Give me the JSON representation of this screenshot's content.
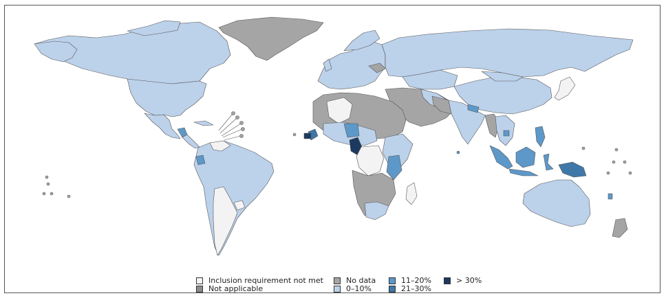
{
  "colors": {
    "not_met": "#f3f3f3",
    "not_applicable": "#8c8c8c",
    "no_data": "#a5a5a5",
    "range_0_10": "#bcd1ea",
    "range_11_20": "#5d98c9",
    "range_21_30": "#3f78a8",
    "range_gt30": "#1c3a60",
    "border": "#555555"
  },
  "legend": {
    "items": [
      {
        "key": "not_met",
        "label": "Inclusion requirement not met"
      },
      {
        "key": "not_applicable",
        "label": "Not applicable"
      },
      {
        "key": "no_data",
        "label": "No data"
      },
      {
        "key": "range_0_10",
        "label": "0–10%"
      },
      {
        "key": "range_11_20",
        "label": "11–20%"
      },
      {
        "key": "range_21_30",
        "label": "21–30%"
      },
      {
        "key": "range_gt30",
        "label": "> 30%"
      }
    ]
  }
}
